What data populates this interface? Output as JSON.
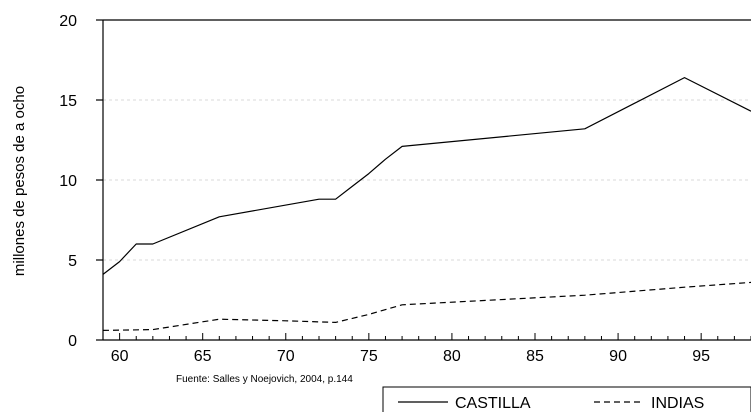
{
  "chart_data": {
    "type": "line",
    "title": "",
    "ylabel": "millones de pesos de a ocho",
    "xlabel": "",
    "source_note": "Fuente: Salles y Noejovich, 2004, p.144",
    "xlim": [
      59,
      98
    ],
    "ylim": [
      0,
      20
    ],
    "x_ticks": [
      60,
      65,
      70,
      75,
      80,
      85,
      90,
      95
    ],
    "y_ticks": [
      0,
      5,
      10,
      15,
      20
    ],
    "grid": {
      "horizontal": true,
      "vertical": false
    },
    "legend": {
      "position": "bottom-right"
    },
    "series": [
      {
        "name": "CASTILLA",
        "style": "solid",
        "color": "#000000",
        "x": [
          59,
          60,
          61,
          62,
          66,
          72,
          73,
          74,
          75,
          76,
          77,
          88,
          91,
          94,
          98
        ],
        "y": [
          4.1,
          4.9,
          6.0,
          6.0,
          7.7,
          8.8,
          8.8,
          9.6,
          10.4,
          11.3,
          12.1,
          13.2,
          14.8,
          16.4,
          14.3
        ]
      },
      {
        "name": "INDIAS",
        "style": "dashed",
        "color": "#000000",
        "x": [
          59,
          62,
          66,
          70,
          73,
          75,
          77,
          88,
          94,
          98
        ],
        "y": [
          0.6,
          0.65,
          1.3,
          1.2,
          1.1,
          1.6,
          2.2,
          2.8,
          3.3,
          3.6
        ]
      }
    ]
  }
}
